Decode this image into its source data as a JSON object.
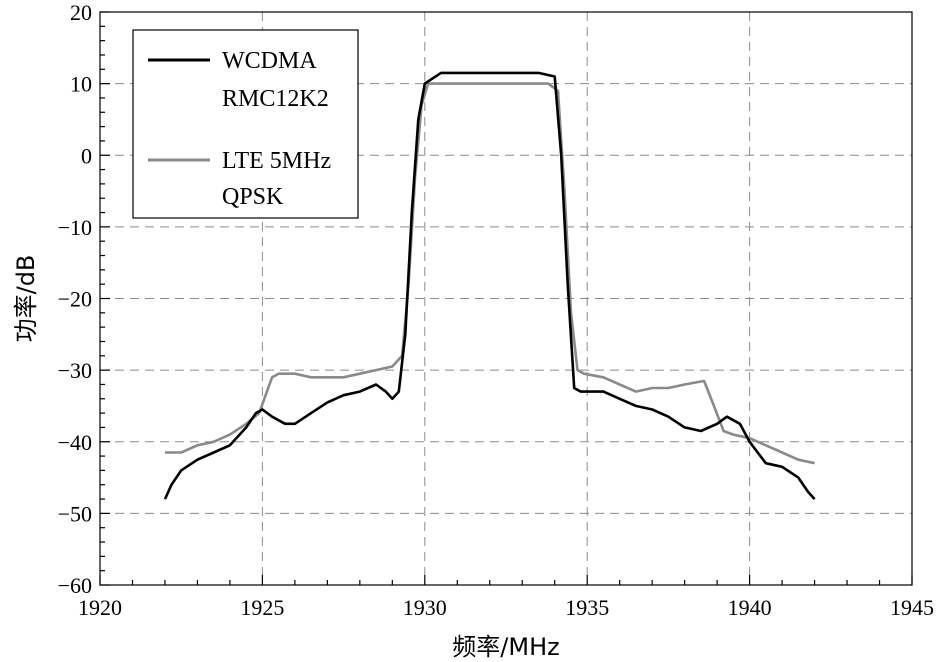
{
  "chart_data": {
    "type": "line",
    "title": "",
    "xlabel": "频率/MHz",
    "ylabel": "功率/dB",
    "xlim": [
      1920,
      1945
    ],
    "ylim": [
      -60,
      20
    ],
    "xticks": [
      "1920",
      "1925",
      "1930",
      "1935",
      "1940",
      "1945"
    ],
    "yticks": [
      "-60",
      "-50",
      "-40",
      "-30",
      "-20",
      "-10",
      "0",
      "10",
      "20"
    ],
    "grid": true,
    "legend_position": "top-left",
    "series": [
      {
        "name_lines": [
          "WCDMA",
          "RMC12K2"
        ],
        "color": "#000000",
        "x": [
          1922.0,
          1922.2,
          1922.5,
          1923.0,
          1923.5,
          1924.0,
          1924.5,
          1924.8,
          1925.0,
          1925.3,
          1925.7,
          1926.0,
          1926.5,
          1927.0,
          1927.5,
          1928.0,
          1928.5,
          1928.8,
          1929.0,
          1929.2,
          1929.4,
          1929.6,
          1929.8,
          1930.0,
          1930.5,
          1931.0,
          1931.5,
          1932.0,
          1932.5,
          1933.0,
          1933.5,
          1934.0,
          1934.2,
          1934.4,
          1934.6,
          1934.8,
          1935.0,
          1935.5,
          1936.0,
          1936.5,
          1937.0,
          1937.5,
          1938.0,
          1938.5,
          1939.0,
          1939.3,
          1939.7,
          1940.0,
          1940.5,
          1941.0,
          1941.5,
          1941.8,
          1942.0
        ],
        "y": [
          -48,
          -46,
          -44,
          -42.5,
          -41.5,
          -40.5,
          -38,
          -36,
          -35.5,
          -36.5,
          -37.5,
          -37.5,
          -36,
          -34.5,
          -33.5,
          -33,
          -32,
          -33,
          -34,
          -33,
          -25,
          -8,
          5,
          10,
          11.5,
          11.5,
          11.5,
          11.5,
          11.5,
          11.5,
          11.5,
          11,
          0,
          -18,
          -32.5,
          -33,
          -33,
          -33,
          -34,
          -35,
          -35.5,
          -36.5,
          -38,
          -38.5,
          -37.5,
          -36.5,
          -37.5,
          -40,
          -43,
          -43.5,
          -45,
          -47,
          -48
        ]
      },
      {
        "name_lines": [
          "LTE 5MHz",
          "QPSK"
        ],
        "color": "#8a8a8a",
        "x": [
          1922.0,
          1922.5,
          1923.0,
          1923.5,
          1924.0,
          1924.5,
          1924.9,
          1925.1,
          1925.3,
          1925.5,
          1926.0,
          1926.5,
          1927.0,
          1927.5,
          1928.0,
          1928.5,
          1929.0,
          1929.3,
          1929.5,
          1929.7,
          1929.9,
          1930.1,
          1930.5,
          1931.0,
          1932.0,
          1933.0,
          1933.8,
          1934.1,
          1934.3,
          1934.5,
          1934.7,
          1934.9,
          1935.5,
          1936.0,
          1936.5,
          1937.0,
          1937.5,
          1938.0,
          1938.6,
          1938.9,
          1939.2,
          1939.5,
          1940.0,
          1940.5,
          1941.0,
          1941.5,
          1942.0
        ],
        "y": [
          -41.5,
          -41.5,
          -40.5,
          -40,
          -39,
          -37.5,
          -36,
          -33.5,
          -31,
          -30.5,
          -30.5,
          -31,
          -31,
          -31,
          -30.5,
          -30,
          -29.5,
          -28,
          -18,
          -3,
          7,
          10,
          10,
          10,
          10,
          10,
          10,
          9,
          -5,
          -22,
          -30,
          -30.5,
          -31,
          -32,
          -33,
          -32.5,
          -32.5,
          -32,
          -31.5,
          -35,
          -38.5,
          -39,
          -39.5,
          -40.5,
          -41.5,
          -42.5,
          -43
        ]
      }
    ]
  }
}
